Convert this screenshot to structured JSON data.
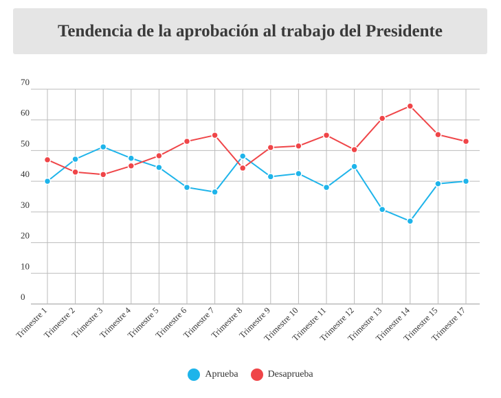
{
  "chart_data": {
    "type": "line",
    "title": "Tendencia de la aprobación al trabajo del Presidente",
    "xlabel": "",
    "ylabel": "",
    "ylim": [
      0,
      70
    ],
    "y_ticks": [
      0,
      10,
      20,
      30,
      40,
      50,
      60,
      70
    ],
    "grid": true,
    "legend_position": "bottom",
    "categories": [
      "Trimestre 1",
      "Trimestre 2",
      "Trimestre 3",
      "Trimestre 4",
      "Trimestre 5",
      "Trimestre 6",
      "Trimestre 7",
      "Trimestre 8",
      "Trimestre 9",
      "Trimestre 10",
      "Trimestre 11",
      "Trimestre 12",
      "Trimestre 13",
      "Trimestre 14",
      "Trimestre 15",
      "Trimestre 17"
    ],
    "series": [
      {
        "name": "Aprueba",
        "color": "#1eb4ea",
        "values": [
          40,
          47.2,
          51.2,
          47.5,
          44.5,
          38,
          36.5,
          48.2,
          41.5,
          42.5,
          38,
          44.8,
          30.8,
          27,
          39.2,
          40
        ]
      },
      {
        "name": "Desaprueba",
        "color": "#ef4548",
        "values": [
          47,
          43,
          42.2,
          45,
          48.3,
          53,
          55,
          44.3,
          51,
          51.5,
          55,
          50.3,
          60.5,
          64.5,
          55.2,
          53
        ]
      }
    ]
  }
}
